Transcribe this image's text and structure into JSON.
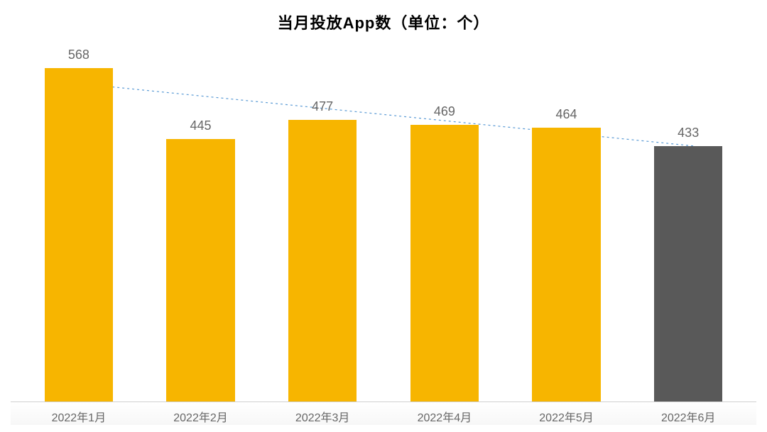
{
  "chart": {
    "type": "bar",
    "title": "当月投放App数（单位：个）",
    "title_fontsize": 22,
    "title_color": "#000000",
    "background_color": "#ffffff",
    "categories": [
      "2022年1月",
      "2022年2月",
      "2022年3月",
      "2022年4月",
      "2022年5月",
      "2022年6月"
    ],
    "values": [
      568,
      445,
      477,
      469,
      464,
      433
    ],
    "bar_colors": [
      "#f7b500",
      "#f7b500",
      "#f7b500",
      "#f7b500",
      "#f7b500",
      "#595959"
    ],
    "bar_width_pct": 56,
    "ylim": [
      0,
      600
    ],
    "value_label_color": "#666666",
    "value_label_fontsize": 18,
    "x_tick_color": "#666666",
    "x_tick_fontsize": 16,
    "axis_line_color": "#d0d0d0",
    "trendline": {
      "color": "#5b9bd5",
      "dash": "3,4",
      "width": 1.2,
      "start_y_value": 540,
      "end_y_value": 433
    }
  }
}
